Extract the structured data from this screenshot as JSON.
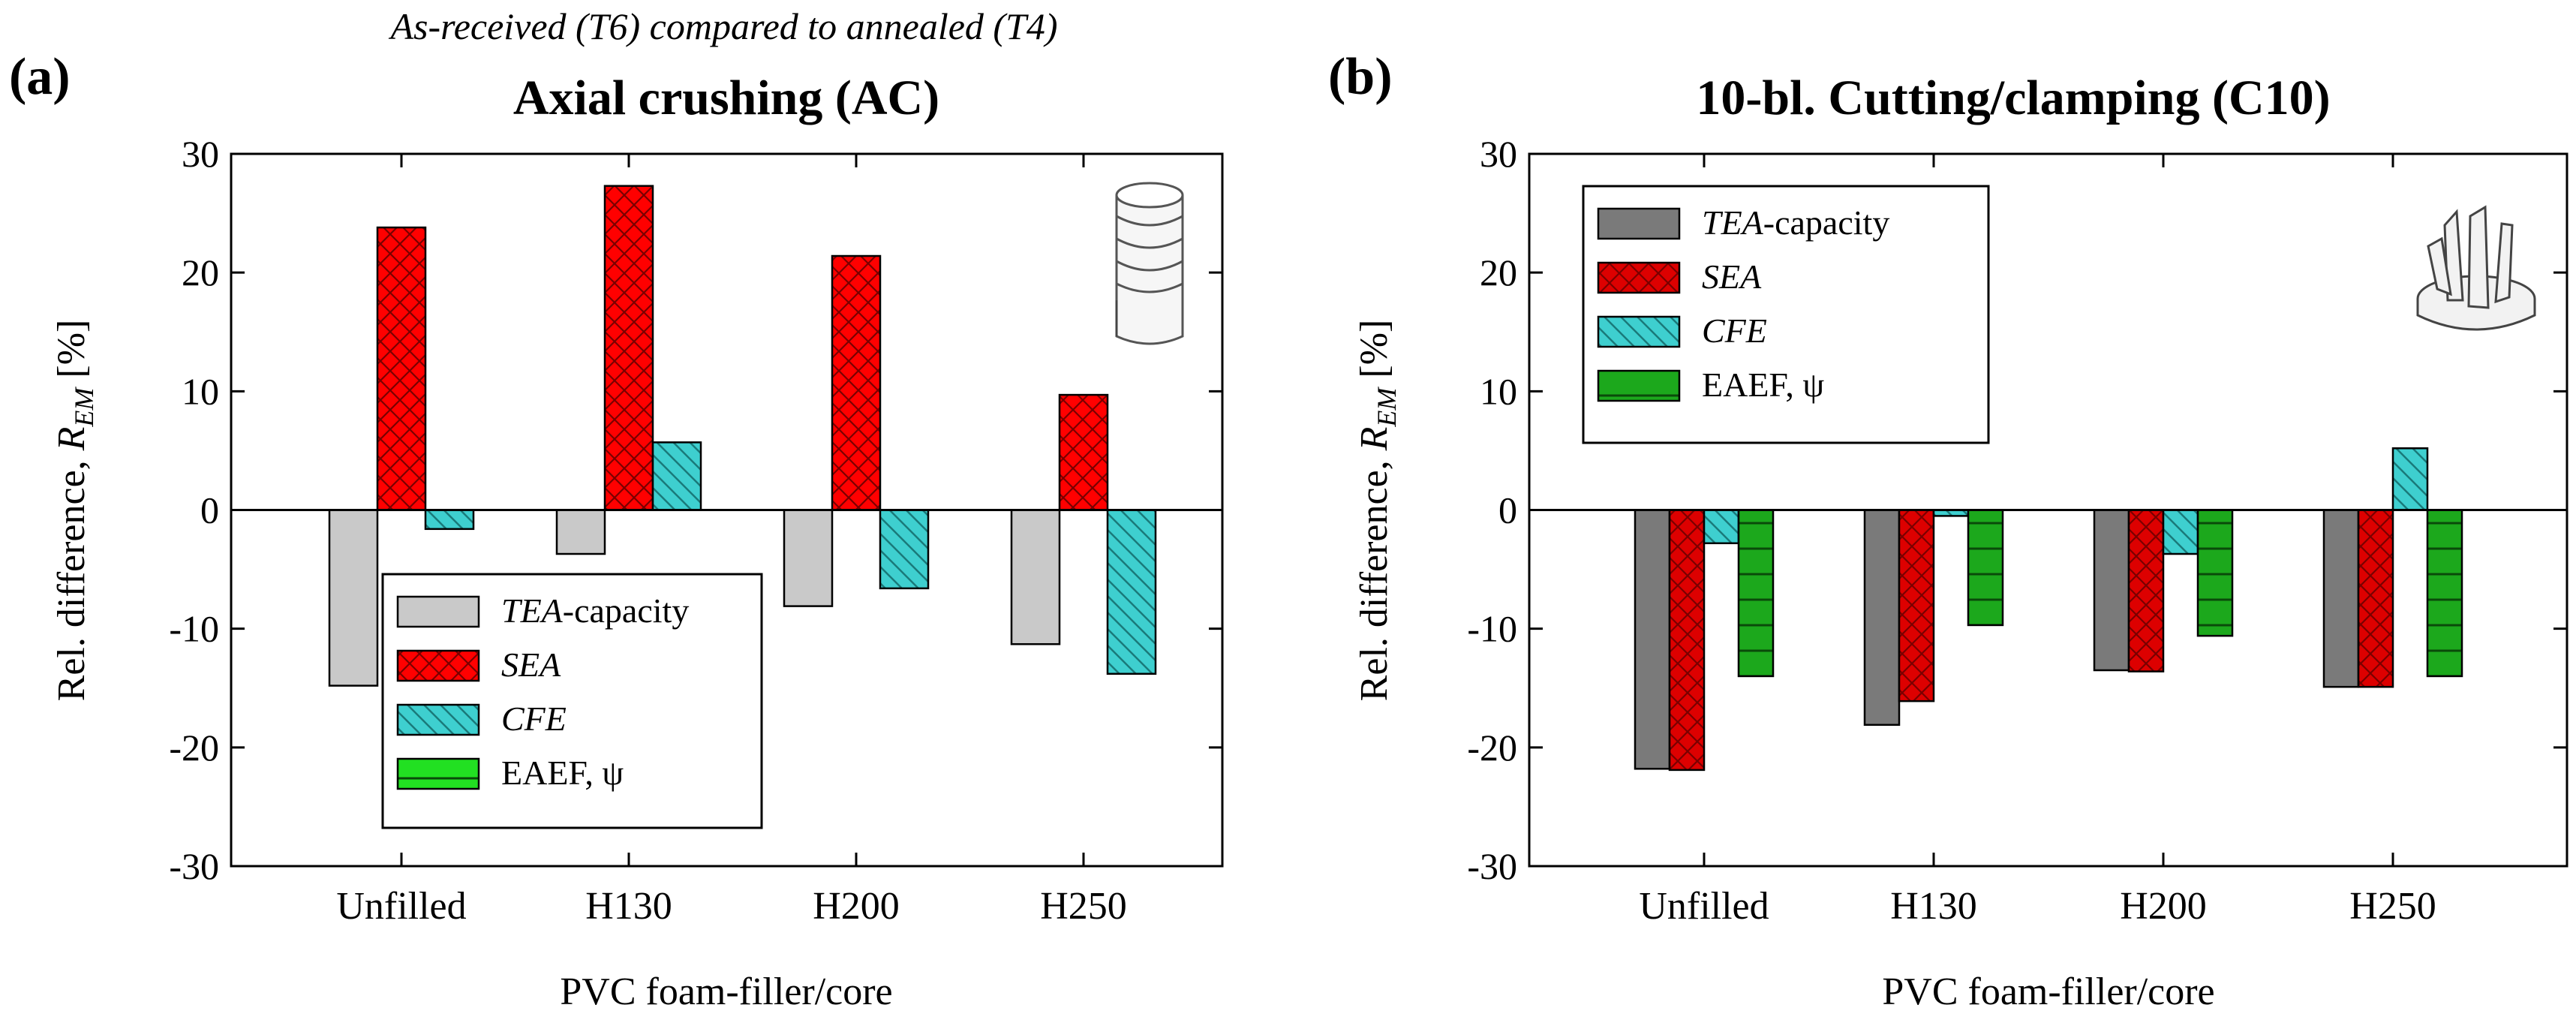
{
  "figure": {
    "subtitle": "As-received (T6) compared to annealed (T4)",
    "ylabel_prefix": "Rel. difference, ",
    "ylabel_symbol": "R",
    "ylabel_subscript": "EM",
    "ylabel_unit": " [%]"
  },
  "chart_data": [
    {
      "type": "bar",
      "panel_tag": "(a)",
      "title": "Axial crushing (AC)",
      "xlabel": "PVC foam-filler/core",
      "ylabel": "Rel. difference, R_EM [%]",
      "ylim": [
        -30,
        30
      ],
      "yticks": [
        -30,
        -20,
        -10,
        0,
        10,
        20,
        30
      ],
      "categories": [
        "Unfilled",
        "H130",
        "H200",
        "H250"
      ],
      "legend_position": "bottom-center",
      "series": [
        {
          "name": "TEA-capacity",
          "name_italic": "TEA",
          "name_rest": "-capacity",
          "color": "#c9c9c9",
          "pattern": "solid-light",
          "values": [
            -14.8,
            -3.7,
            -8.1,
            -11.3
          ]
        },
        {
          "name": "SEA",
          "name_italic": "SEA",
          "name_rest": "",
          "color": "#ff0000",
          "pattern": "crosshatch",
          "values": [
            23.8,
            27.3,
            21.4,
            9.7
          ]
        },
        {
          "name": "CFE",
          "name_italic": "CFE",
          "name_rest": "",
          "color": "#3ecfcf",
          "pattern": "diagonal",
          "values": [
            -1.6,
            5.7,
            -6.6,
            -13.8
          ]
        },
        {
          "name": "EAEF, ψ",
          "name_italic": "",
          "name_rest": "EAEF, ψ",
          "color": "#22e022",
          "pattern": "horizontal",
          "values": [
            null,
            null,
            null,
            null
          ]
        }
      ]
    },
    {
      "type": "bar",
      "panel_tag": "(b)",
      "title": "10-bl. Cutting/clamping (C10)",
      "xlabel": "PVC foam-filler/core",
      "ylabel": "Rel. difference, R_EM [%]",
      "ylim": [
        -30,
        30
      ],
      "yticks": [
        -30,
        -20,
        -10,
        0,
        10,
        20,
        30
      ],
      "categories": [
        "Unfilled",
        "H130",
        "H200",
        "H250"
      ],
      "legend_position": "top-left",
      "series": [
        {
          "name": "TEA-capacity",
          "name_italic": "TEA",
          "name_rest": "-capacity",
          "color": "#7a7a7a",
          "pattern": "solid-dark",
          "values": [
            -21.8,
            -18.1,
            -13.5,
            -14.9
          ]
        },
        {
          "name": "SEA",
          "name_italic": "SEA",
          "name_rest": "",
          "color": "#dd0000",
          "pattern": "crosshatch",
          "values": [
            -21.9,
            -16.1,
            -13.6,
            -14.9
          ]
        },
        {
          "name": "CFE",
          "name_italic": "CFE",
          "name_rest": "",
          "color": "#3ecfcf",
          "pattern": "diagonal",
          "values": [
            -2.8,
            -0.5,
            -3.7,
            5.2
          ]
        },
        {
          "name": "EAEF, ψ",
          "name_italic": "",
          "name_rest": "EAEF, ψ",
          "color": "#1ca81c",
          "pattern": "horizontal",
          "values": [
            -14.0,
            -9.7,
            -10.6,
            -14.0
          ]
        }
      ]
    }
  ]
}
